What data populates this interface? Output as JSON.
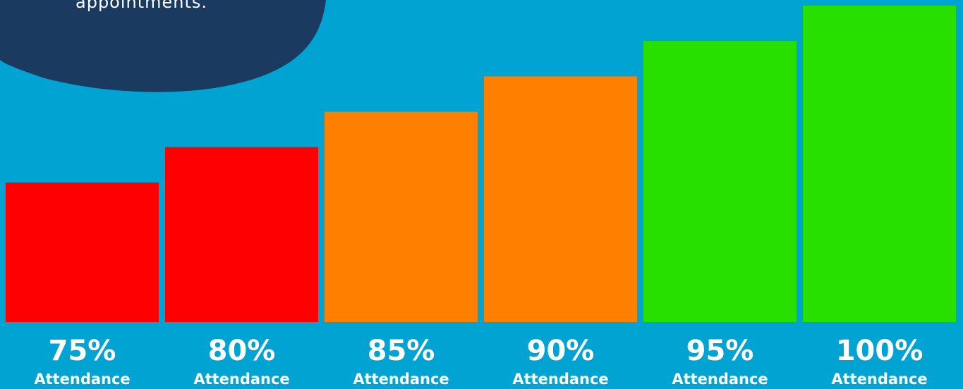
{
  "callout": {
    "text": "appointments."
  },
  "chart_data": {
    "type": "bar",
    "categories": [
      "75%",
      "80%",
      "85%",
      "90%",
      "95%",
      "100%"
    ],
    "sublabel": "Attendance",
    "values": [
      75,
      80,
      85,
      90,
      95,
      100
    ],
    "colors": [
      "#ff0000",
      "#ff0000",
      "#ff8000",
      "#ff8000",
      "#28e000",
      "#28e000"
    ],
    "title": "",
    "xlabel": "",
    "ylabel": "",
    "grid": false,
    "legend": "none"
  },
  "colors": {
    "background": "#00a3d1",
    "callout": "#1a3a60"
  }
}
